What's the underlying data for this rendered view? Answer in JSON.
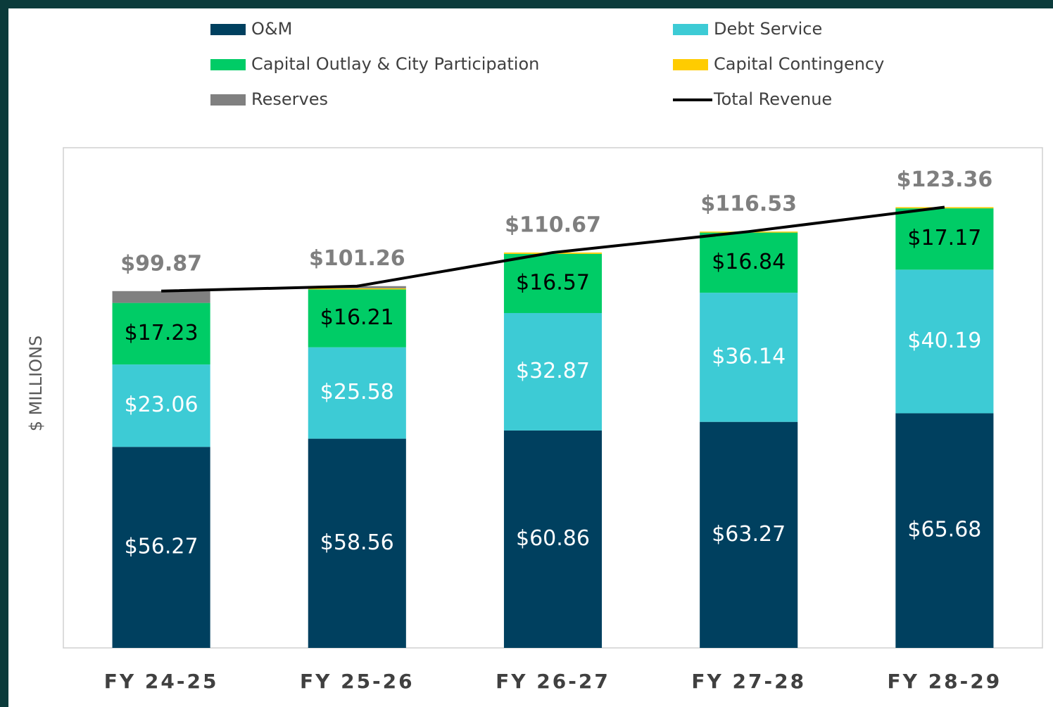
{
  "chart_data": {
    "type": "stacked_bar_line",
    "ylabel": "$ MILLIONS",
    "categories": [
      "FY 24-25",
      "FY 25-26",
      "FY 26-27",
      "FY 27-28",
      "FY 28-29"
    ],
    "ylim": [
      0,
      140
    ],
    "series": [
      {
        "name": "O&M",
        "type": "bar",
        "color": "#00405f",
        "label_color": "#ffffff",
        "values": [
          56.27,
          58.56,
          60.86,
          63.27,
          65.68
        ],
        "value_labels": [
          "$56.27",
          "$58.56",
          "$60.86",
          "$63.27",
          "$65.68"
        ]
      },
      {
        "name": "Debt Service",
        "type": "bar",
        "color": "#3dcbd5",
        "label_color": "#ffffff",
        "values": [
          23.06,
          25.58,
          32.87,
          36.14,
          40.19
        ],
        "value_labels": [
          "$23.06",
          "$25.58",
          "$32.87",
          "$36.14",
          "$40.19"
        ]
      },
      {
        "name": "Capital Outlay & City Participation",
        "type": "bar",
        "color": "#00cc66",
        "label_color": "#000000",
        "values": [
          17.23,
          16.21,
          16.57,
          16.84,
          17.17
        ],
        "value_labels": [
          "$17.23",
          "$16.21",
          "$16.57",
          "$16.84",
          "$17.17"
        ]
      },
      {
        "name": "Capital Contingency",
        "type": "bar",
        "color": "#ffcc00",
        "values": [
          0,
          0.3,
          0.37,
          0.28,
          0.32
        ]
      },
      {
        "name": "Reserves",
        "type": "bar",
        "color": "#808080",
        "values": [
          3.31,
          0.61,
          0,
          0,
          0
        ]
      },
      {
        "name": "Total Revenue",
        "type": "line",
        "color": "#000000",
        "label_color": "#7f7f7f",
        "values": [
          99.87,
          101.26,
          110.67,
          116.53,
          123.36
        ],
        "value_labels": [
          "$99.87",
          "$101.26",
          "$110.67",
          "$116.53",
          "$123.36"
        ]
      }
    ]
  }
}
